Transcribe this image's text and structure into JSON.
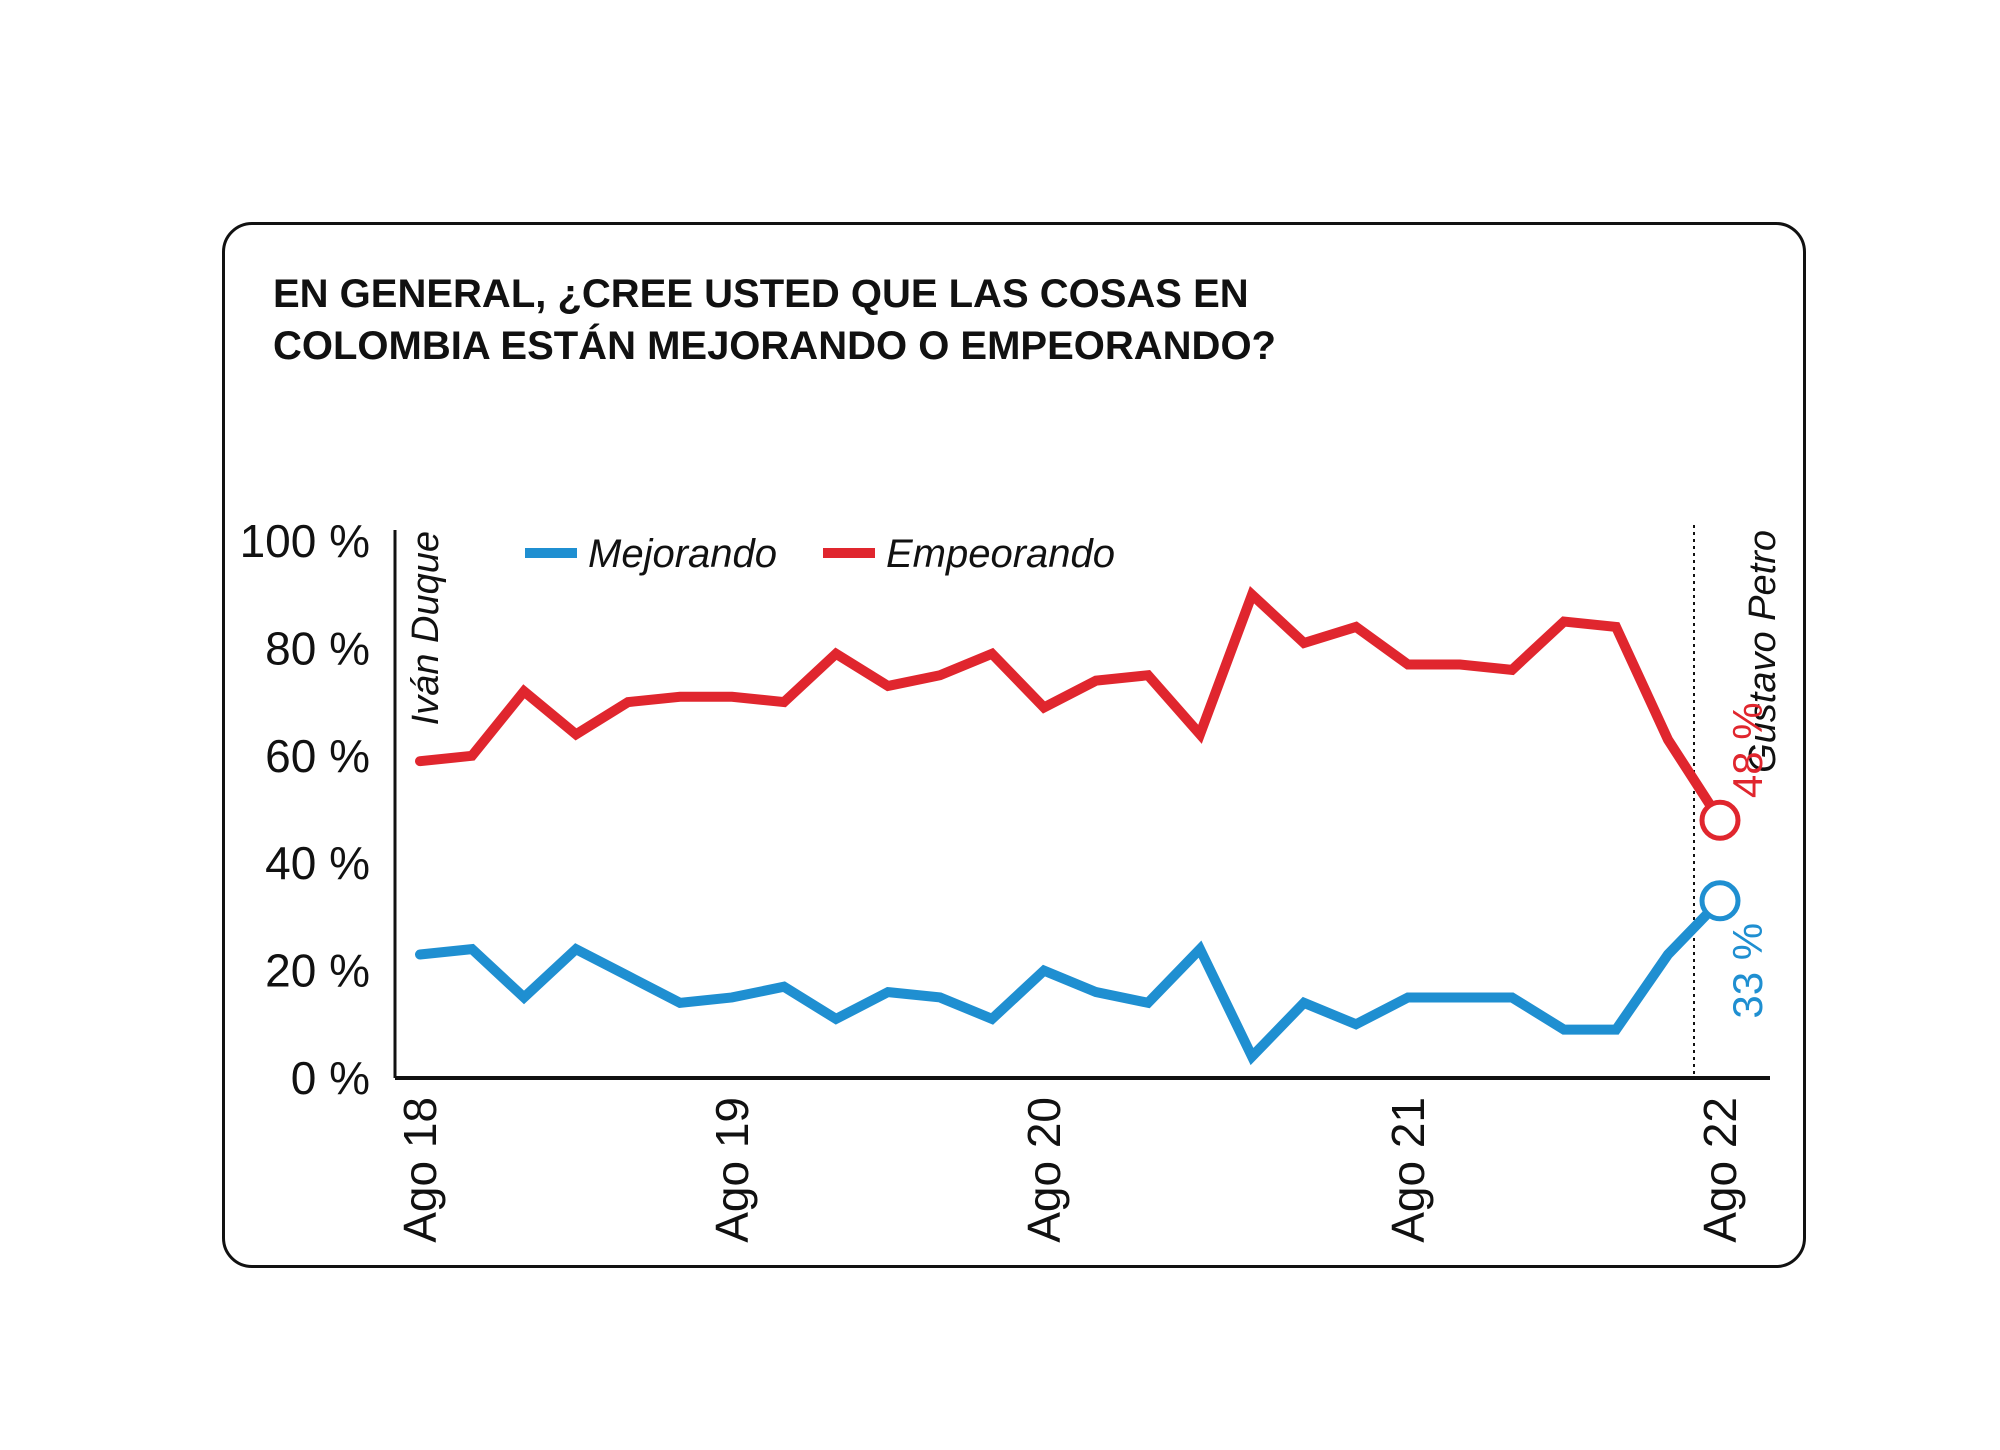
{
  "chart_data": {
    "type": "line",
    "title_lines": [
      "EN GENERAL, ¿CREE USTED QUE LAS COSAS EN",
      "COLOMBIA ESTÁN MEJORANDO O EMPEORANDO?"
    ],
    "ylim": [
      0,
      100
    ],
    "y_ticks": [
      {
        "value": 0,
        "label": "0 %"
      },
      {
        "value": 20,
        "label": "20 %"
      },
      {
        "value": 40,
        "label": "40 %"
      },
      {
        "value": 60,
        "label": "60 %"
      },
      {
        "value": 80,
        "label": "80 %"
      },
      {
        "value": 100,
        "label": "100 %"
      }
    ],
    "x_ticks": [
      {
        "index": 0,
        "label": "Ago 18"
      },
      {
        "index": 6,
        "label": "Ago 19"
      },
      {
        "index": 12,
        "label": "Ago 20"
      },
      {
        "index": 19,
        "label": "Ago 21"
      },
      {
        "index": 25,
        "label": "Ago 22"
      }
    ],
    "point_count": 26,
    "series": [
      {
        "name": "Mejorando",
        "color": "#1f8fd1",
        "values": [
          23,
          24,
          15,
          24,
          19,
          14,
          15,
          17,
          11,
          16,
          15,
          11,
          20,
          16,
          14,
          24,
          4,
          14,
          10,
          15,
          15,
          15,
          9,
          9,
          23,
          33
        ],
        "end_label": "33 %"
      },
      {
        "name": "Empeorando",
        "color": "#e0262e",
        "values": [
          59,
          60,
          72,
          64,
          70,
          71,
          71,
          70,
          79,
          73,
          75,
          79,
          69,
          74,
          75,
          64,
          90,
          81,
          84,
          77,
          77,
          76,
          85,
          84,
          63,
          48
        ],
        "end_label": "48 %"
      }
    ],
    "annotations": [
      {
        "text": "Iván Duque",
        "at_index": 0
      },
      {
        "text": "Gustavo Petro",
        "at_index": 24.5
      }
    ],
    "legend_position": "top-left"
  }
}
